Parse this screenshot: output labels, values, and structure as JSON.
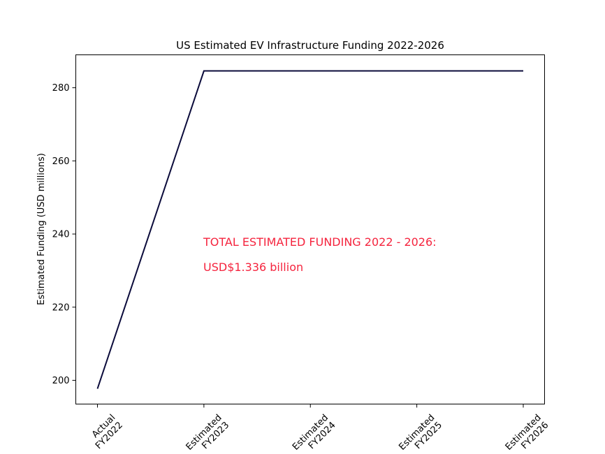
{
  "chart_data": {
    "type": "line",
    "title": "US Estimated EV Infrastructure Funding 2022-2026",
    "xlabel": "",
    "ylabel": "Estimated Funding (USD millions)",
    "categories": [
      [
        "Actual",
        "FY2022"
      ],
      [
        "Estimated",
        "FY2023"
      ],
      [
        "Estimated",
        "FY2024"
      ],
      [
        "Estimated",
        "FY2025"
      ],
      [
        "Estimated",
        "FY2026"
      ]
    ],
    "values": [
      197.7,
      284.6,
      284.6,
      284.6,
      284.6
    ],
    "ylim": [
      193.5,
      289
    ],
    "yticks": [
      200,
      220,
      240,
      260,
      280
    ],
    "grid": false,
    "line_color": "#0b0b3b",
    "annotations": [
      {
        "text": "TOTAL ESTIMATED FUNDING 2022 - 2026:",
        "color": "#f5243e"
      },
      {
        "text": "USD$1.336 billion",
        "color": "#f5243e"
      }
    ]
  }
}
